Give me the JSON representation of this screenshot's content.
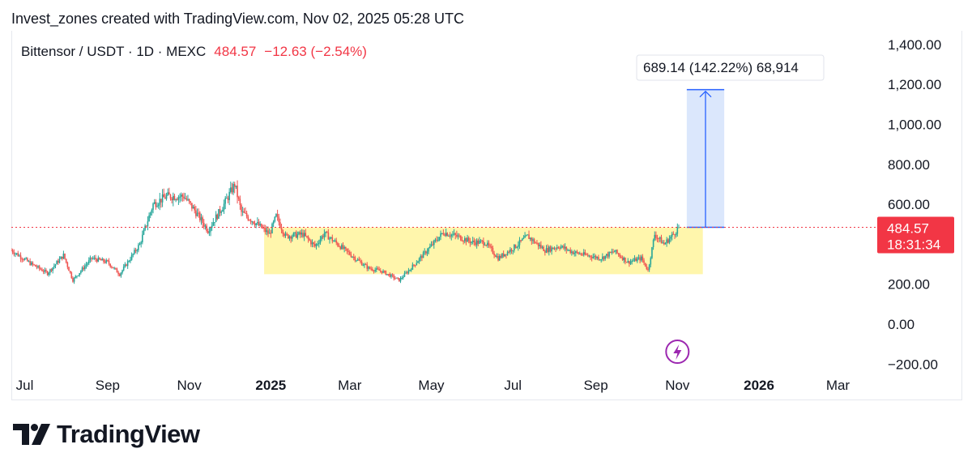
{
  "header": {
    "text": "Invest_zones created with TradingView.com, Nov 02, 2025 05:28 UTC"
  },
  "legend": {
    "symbol": "Bittensor / USDT · 1D · MEXC",
    "price": "484.57",
    "change": "−12.63 (−2.54%)"
  },
  "price_tag": {
    "price": "484.57",
    "countdown": "18:31:34"
  },
  "measure": {
    "label": "689.14 (142.22%) 68,914",
    "from": 484.57,
    "to": 1173.71
  },
  "brand": {
    "name": "TradingView"
  },
  "colors": {
    "up": "#26a69a",
    "down": "#ef5350",
    "range_zone": "#fff59d",
    "measure_fill": "#dbe7fc",
    "measure_line": "#2962ff",
    "price_tag": "#f23645",
    "event_icon": "#9c27b0"
  },
  "chart_data": {
    "type": "candlestick",
    "title": "Bittensor / USDT · 1D · MEXC",
    "y_tick_labels": [
      "1,400.00",
      "1,200.00",
      "1,000.00",
      "800.00",
      "600.00",
      "200.00",
      "0.00",
      "−200.00"
    ],
    "y_ticks": [
      1400,
      1200,
      1000,
      800,
      600,
      200,
      0,
      -200
    ],
    "x_tick_labels": [
      "Jul",
      "Sep",
      "Nov",
      "2025",
      "Mar",
      "May",
      "Jul",
      "Sep",
      "Nov",
      "2026",
      "Mar"
    ],
    "x_tick_dates": [
      "2024-07-01",
      "2024-09-01",
      "2024-11-01",
      "2025-01-01",
      "2025-03-01",
      "2025-05-01",
      "2025-07-01",
      "2025-09-01",
      "2025-11-01",
      "2026-01-01",
      "2026-03-01"
    ],
    "x_tick_bold": [
      false,
      false,
      false,
      true,
      false,
      false,
      false,
      false,
      false,
      true,
      false
    ],
    "ylim": [
      -200,
      1400
    ],
    "xlim": [
      "2024-06-21",
      "2026-03-31"
    ],
    "last_price": 484.57,
    "range_zone": {
      "from_date": "2024-12-27",
      "to_date": "2025-11-20",
      "low": 250,
      "high": 484.57
    },
    "measure_zone": {
      "from_date": "2025-11-08",
      "to_date": "2025-12-06",
      "low": 484.57,
      "high": 1173.71
    },
    "event_date": "2025-11-01",
    "close_path": [
      [
        "2024-06-21",
        370
      ],
      [
        "2024-07-05",
        305
      ],
      [
        "2024-07-18",
        255
      ],
      [
        "2024-07-30",
        345
      ],
      [
        "2024-08-06",
        220
      ],
      [
        "2024-08-20",
        330
      ],
      [
        "2024-09-01",
        310
      ],
      [
        "2024-09-10",
        250
      ],
      [
        "2024-09-25",
        400
      ],
      [
        "2024-10-05",
        600
      ],
      [
        "2024-10-15",
        640
      ],
      [
        "2024-10-28",
        640
      ],
      [
        "2024-11-05",
        570
      ],
      [
        "2024-11-15",
        470
      ],
      [
        "2024-11-27",
        600
      ],
      [
        "2024-12-05",
        700
      ],
      [
        "2024-12-10",
        560
      ],
      [
        "2024-12-20",
        510
      ],
      [
        "2024-12-31",
        450
      ],
      [
        "2025-01-05",
        540
      ],
      [
        "2025-01-12",
        440
      ],
      [
        "2025-01-25",
        450
      ],
      [
        "2025-02-03",
        390
      ],
      [
        "2025-02-10",
        455
      ],
      [
        "2025-02-20",
        400
      ],
      [
        "2025-03-05",
        330
      ],
      [
        "2025-03-15",
        280
      ],
      [
        "2025-03-25",
        265
      ],
      [
        "2025-04-07",
        220
      ],
      [
        "2025-04-15",
        275
      ],
      [
        "2025-04-28",
        370
      ],
      [
        "2025-05-10",
        460
      ],
      [
        "2025-05-20",
        440
      ],
      [
        "2025-06-01",
        410
      ],
      [
        "2025-06-10",
        410
      ],
      [
        "2025-06-20",
        330
      ],
      [
        "2025-07-01",
        380
      ],
      [
        "2025-07-12",
        440
      ],
      [
        "2025-07-25",
        370
      ],
      [
        "2025-08-05",
        390
      ],
      [
        "2025-08-15",
        360
      ],
      [
        "2025-08-25",
        345
      ],
      [
        "2025-09-05",
        330
      ],
      [
        "2025-09-15",
        365
      ],
      [
        "2025-09-25",
        310
      ],
      [
        "2025-10-05",
        330
      ],
      [
        "2025-10-10",
        270
      ],
      [
        "2025-10-15",
        450
      ],
      [
        "2025-10-22",
        400
      ],
      [
        "2025-10-29",
        450
      ],
      [
        "2025-11-02",
        484.57
      ]
    ]
  }
}
